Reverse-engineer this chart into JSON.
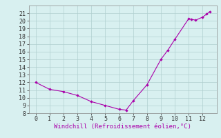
{
  "x": [
    0,
    1,
    2,
    3,
    4,
    5,
    6,
    6.5,
    7,
    8,
    9,
    9.5,
    10,
    11,
    11.2,
    11.5,
    12,
    12.3,
    12.5
  ],
  "y": [
    12,
    11.1,
    10.8,
    10.3,
    9.5,
    9.0,
    8.5,
    8.4,
    9.6,
    11.7,
    15.0,
    16.2,
    17.6,
    20.3,
    20.2,
    20.1,
    20.5,
    20.9,
    21.2
  ],
  "line_color": "#aa00aa",
  "marker_color": "#aa00aa",
  "bg_color": "#d8f0f0",
  "grid_color": "#b0d0d0",
  "xlabel": "Windchill (Refroidissement éolien,°C)",
  "xlim": [
    -0.5,
    13.0
  ],
  "ylim": [
    8,
    22
  ],
  "xticks": [
    0,
    1,
    2,
    3,
    4,
    5,
    6,
    7,
    8,
    9,
    10,
    11,
    12
  ],
  "yticks": [
    8,
    9,
    10,
    11,
    12,
    13,
    14,
    15,
    16,
    17,
    18,
    19,
    20,
    21
  ],
  "xlabel_fontsize": 6.5,
  "tick_fontsize": 6.0
}
